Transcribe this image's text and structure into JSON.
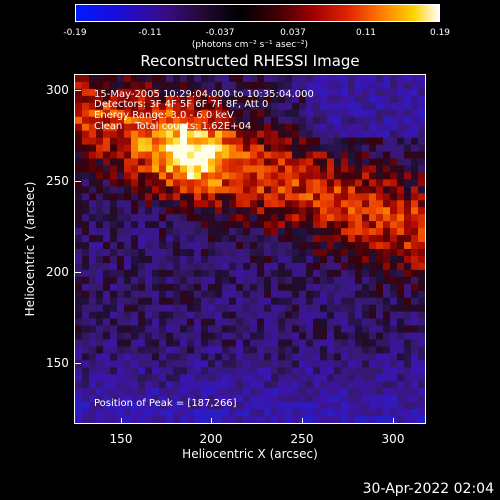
{
  "colorbar": {
    "ticks": [
      "-0.19",
      "-0.11",
      "-0.037",
      "0.037",
      "0.11",
      "0.19"
    ],
    "units": "(photons cm⁻² s⁻¹ asec⁻²)"
  },
  "title": "Reconstructed RHESSI Image",
  "annotations": {
    "time": "15-May-2005 10:29:04.000 to 10:35:04.000",
    "detectors": "Detectors: 3F 4F 5F 6F 7F 8F, Att 0",
    "energy": "Energy Range: 3.0 - 6.0 keV",
    "method": "Clean    Total counts: 1.62E+04",
    "peak": "Position of Peak = [187,266]"
  },
  "chart_data": {
    "type": "heatmap",
    "title": "Reconstructed RHESSI Image",
    "xlabel": "Heliocentric X (arcsec)",
    "ylabel": "Heliocentric Y (arcsec)",
    "xlim": [
      125,
      320
    ],
    "ylim": [
      115,
      310
    ],
    "xticks": [
      "150",
      "200",
      "250",
      "300"
    ],
    "yticks": [
      "300",
      "250",
      "200",
      "150"
    ],
    "color_range": [
      -0.19,
      0.19
    ],
    "peak": [
      187,
      266
    ]
  },
  "footer": "30-Apr-2022 02:04"
}
